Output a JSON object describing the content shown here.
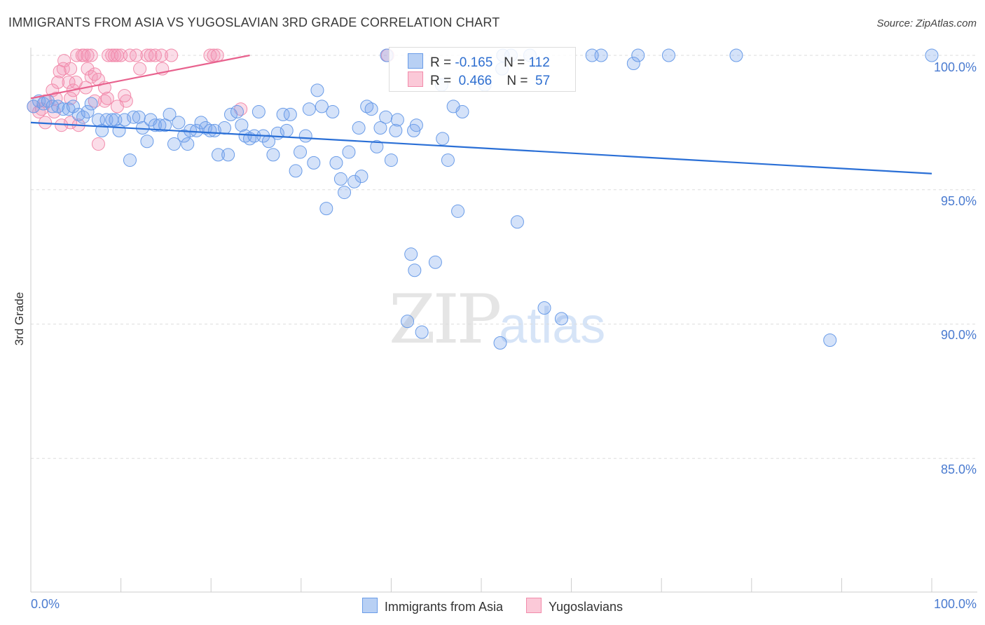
{
  "title": "IMMIGRANTS FROM ASIA VS YUGOSLAVIAN 3RD GRADE CORRELATION CHART",
  "source": "Source: ZipAtlas.com",
  "watermark": {
    "zip": "ZIP",
    "atlas": "atlas"
  },
  "colors": {
    "blue": "#6a9ce8",
    "blue_line": "#2a6fd6",
    "pink": "#f28bab",
    "pink_line": "#e8628e",
    "tick_text": "#4a7bd0"
  },
  "legend_box": [
    {
      "r_label": "R =",
      "r": "-0.165",
      "n_label": "N =",
      "n": "112"
    },
    {
      "r_label": "R =",
      "r": "0.466",
      "n_label": "N =",
      "n": "57"
    }
  ],
  "chart_data": {
    "type": "scatter",
    "title": "IMMIGRANTS FROM ASIA VS YUGOSLAVIAN 3RD GRADE CORRELATION CHART",
    "xlabel": "",
    "ylabel": "3rd Grade",
    "xlim": [
      0,
      100
    ],
    "ylim": [
      80,
      100.5
    ],
    "x_tick_labels": [
      "0.0%",
      "100.0%"
    ],
    "y_ticks": [
      {
        "v": 100,
        "label": "100.0%"
      },
      {
        "v": 95,
        "label": "95.0%"
      },
      {
        "v": 90,
        "label": "90.0%"
      },
      {
        "v": 85,
        "label": "85.0%"
      }
    ],
    "grid": true,
    "legend_placement": "bottom",
    "series": [
      {
        "name": "Immigrants from Asia",
        "color": "#6a9ce8",
        "trend": [
          [
            0,
            97.5
          ],
          [
            100,
            95.6
          ]
        ],
        "points": [
          [
            0.3,
            98.1
          ],
          [
            0.9,
            98.3
          ],
          [
            1.4,
            98.2
          ],
          [
            1.9,
            98.3
          ],
          [
            2.4,
            98.1
          ],
          [
            3.0,
            98.1
          ],
          [
            3.6,
            98.0
          ],
          [
            4.2,
            98.0
          ],
          [
            4.7,
            98.1
          ],
          [
            5.3,
            97.8
          ],
          [
            5.8,
            97.7
          ],
          [
            6.3,
            97.9
          ],
          [
            6.7,
            98.2
          ],
          [
            7.5,
            97.6
          ],
          [
            7.9,
            97.2
          ],
          [
            8.4,
            97.6
          ],
          [
            9.0,
            97.6
          ],
          [
            9.4,
            97.6
          ],
          [
            9.8,
            97.2
          ],
          [
            10.4,
            97.6
          ],
          [
            11.0,
            96.1
          ],
          [
            11.4,
            97.7
          ],
          [
            12.0,
            97.7
          ],
          [
            12.4,
            97.3
          ],
          [
            12.9,
            96.8
          ],
          [
            13.3,
            97.6
          ],
          [
            13.8,
            97.4
          ],
          [
            14.3,
            97.4
          ],
          [
            14.9,
            97.4
          ],
          [
            15.4,
            97.8
          ],
          [
            15.9,
            96.7
          ],
          [
            16.4,
            97.5
          ],
          [
            17.0,
            97.0
          ],
          [
            17.4,
            96.7
          ],
          [
            17.7,
            97.2
          ],
          [
            18.4,
            97.2
          ],
          [
            18.9,
            97.5
          ],
          [
            19.4,
            97.3
          ],
          [
            19.9,
            97.2
          ],
          [
            20.4,
            97.2
          ],
          [
            20.8,
            96.3
          ],
          [
            21.5,
            97.3
          ],
          [
            21.9,
            96.3
          ],
          [
            22.2,
            97.8
          ],
          [
            22.9,
            97.9
          ],
          [
            23.4,
            97.4
          ],
          [
            23.8,
            97.0
          ],
          [
            24.3,
            96.9
          ],
          [
            24.8,
            97.0
          ],
          [
            25.3,
            97.9
          ],
          [
            25.8,
            97.0
          ],
          [
            26.4,
            96.8
          ],
          [
            26.9,
            96.3
          ],
          [
            27.4,
            97.1
          ],
          [
            28.0,
            97.8
          ],
          [
            28.4,
            97.2
          ],
          [
            28.8,
            97.8
          ],
          [
            29.4,
            95.7
          ],
          [
            29.9,
            96.4
          ],
          [
            30.5,
            97.0
          ],
          [
            30.9,
            98.0
          ],
          [
            31.4,
            96.0
          ],
          [
            31.8,
            98.7
          ],
          [
            32.3,
            98.1
          ],
          [
            32.8,
            94.3
          ],
          [
            33.5,
            97.9
          ],
          [
            33.9,
            96.0
          ],
          [
            34.4,
            95.4
          ],
          [
            34.8,
            94.9
          ],
          [
            35.3,
            96.4
          ],
          [
            35.9,
            95.3
          ],
          [
            36.4,
            97.3
          ],
          [
            36.7,
            95.5
          ],
          [
            37.3,
            98.1
          ],
          [
            37.8,
            98.0
          ],
          [
            38.4,
            96.6
          ],
          [
            38.8,
            97.3
          ],
          [
            39.4,
            97.7
          ],
          [
            40.0,
            96.1
          ],
          [
            40.5,
            97.2
          ],
          [
            40.7,
            97.6
          ],
          [
            42.5,
            97.2
          ],
          [
            42.8,
            97.4
          ],
          [
            43.4,
            89.7
          ],
          [
            41.8,
            90.1
          ],
          [
            42.2,
            92.6
          ],
          [
            42.6,
            92.0
          ],
          [
            44.9,
            92.3
          ],
          [
            45.7,
            96.9
          ],
          [
            46.3,
            96.1
          ],
          [
            46.9,
            98.1
          ],
          [
            47.4,
            94.2
          ],
          [
            47.9,
            97.9
          ],
          [
            52.1,
            89.3
          ],
          [
            54.0,
            93.8
          ],
          [
            57.0,
            90.6
          ],
          [
            58.9,
            90.2
          ],
          [
            88.7,
            89.4
          ],
          [
            39.5,
            100.0
          ],
          [
            52.4,
            100.0
          ],
          [
            53.3,
            100.0
          ],
          [
            55.4,
            100.0
          ],
          [
            62.3,
            100.0
          ],
          [
            63.3,
            100.0
          ],
          [
            66.9,
            99.7
          ],
          [
            67.4,
            100.0
          ],
          [
            70.8,
            100.0
          ],
          [
            78.3,
            100.0
          ],
          [
            100,
            100.0
          ],
          [
            50.4,
            98.9
          ],
          [
            52.3,
            99.5
          ],
          [
            45.6,
            98.9
          ]
        ]
      },
      {
        "name": "Yugoslavians",
        "color": "#f28bab",
        "trend": [
          [
            0,
            98.4
          ],
          [
            24.3,
            100
          ]
        ],
        "points": [
          [
            5.1,
            100
          ],
          [
            5.7,
            100
          ],
          [
            5.9,
            100
          ],
          [
            6.3,
            100
          ],
          [
            6.7,
            100
          ],
          [
            8.6,
            100
          ],
          [
            9.0,
            100
          ],
          [
            9.3,
            100
          ],
          [
            9.6,
            100
          ],
          [
            10.0,
            100
          ],
          [
            11.0,
            100
          ],
          [
            11.7,
            100
          ],
          [
            12.9,
            100
          ],
          [
            13.3,
            100
          ],
          [
            13.8,
            100
          ],
          [
            14.5,
            100
          ],
          [
            15.6,
            100
          ],
          [
            19.9,
            100
          ],
          [
            20.3,
            100
          ],
          [
            20.7,
            100
          ],
          [
            39.6,
            100
          ],
          [
            3.7,
            99.8
          ],
          [
            3.6,
            99.5
          ],
          [
            4.4,
            99.5
          ],
          [
            3.2,
            99.4
          ],
          [
            6.3,
            99.5
          ],
          [
            6.7,
            99.2
          ],
          [
            5.0,
            99.0
          ],
          [
            4.2,
            99.0
          ],
          [
            7.1,
            99.3
          ],
          [
            7.5,
            99.1
          ],
          [
            3.0,
            99.0
          ],
          [
            2.4,
            98.7
          ],
          [
            4.7,
            98.7
          ],
          [
            8.2,
            98.8
          ],
          [
            6.1,
            98.8
          ],
          [
            2.8,
            98.4
          ],
          [
            4.4,
            98.4
          ],
          [
            2.6,
            97.9
          ],
          [
            8.2,
            98.3
          ],
          [
            8.5,
            98.4
          ],
          [
            12.1,
            99.5
          ],
          [
            14.6,
            99.5
          ],
          [
            10.6,
            98.3
          ],
          [
            9.6,
            98.1
          ],
          [
            10.4,
            98.5
          ],
          [
            7.1,
            98.3
          ],
          [
            23.3,
            98.0
          ],
          [
            7.5,
            96.7
          ],
          [
            4.4,
            97.5
          ],
          [
            1.6,
            97.5
          ],
          [
            3.4,
            97.4
          ],
          [
            5.3,
            97.4
          ],
          [
            0.3,
            98.1
          ],
          [
            0.9,
            97.9
          ],
          [
            1.2,
            98.0
          ],
          [
            1.6,
            98.3
          ]
        ]
      }
    ]
  }
}
